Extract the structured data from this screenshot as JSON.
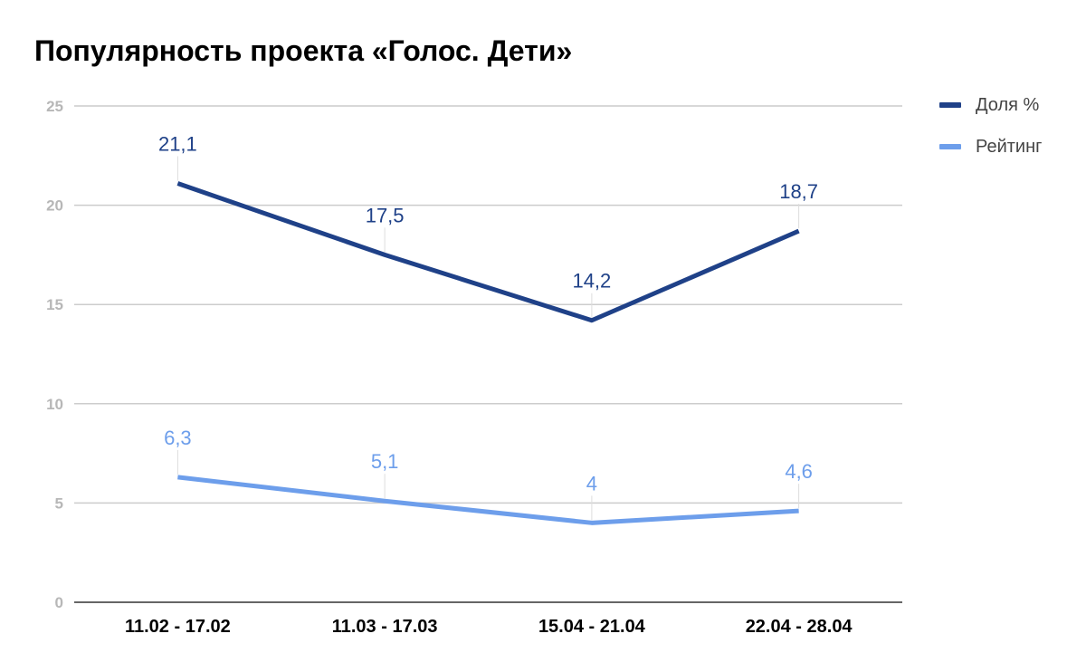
{
  "chart_data": {
    "type": "line",
    "title": "Популярность проекта «Голос. Дети»",
    "categories": [
      "11.02 - 17.02",
      "11.03 - 17.03",
      "15.04 - 21.04",
      "22.04 - 28.04"
    ],
    "series": [
      {
        "name": "Доля %",
        "values": [
          21.1,
          17.5,
          14.2,
          18.7
        ],
        "labels": [
          "21,1",
          "17,5",
          "14,2",
          "18,7"
        ],
        "color": "#1f4188"
      },
      {
        "name": "Рейтинг",
        "values": [
          6.3,
          5.1,
          4,
          4.6
        ],
        "labels": [
          "6,3",
          "5,1",
          "4",
          "4,6"
        ],
        "color": "#6d9eeb"
      }
    ],
    "ylim": [
      0,
      25
    ],
    "yticks": [
      0,
      5,
      10,
      15,
      20,
      25
    ],
    "xlabel": "",
    "ylabel": "",
    "grid": true,
    "legend": "right"
  }
}
